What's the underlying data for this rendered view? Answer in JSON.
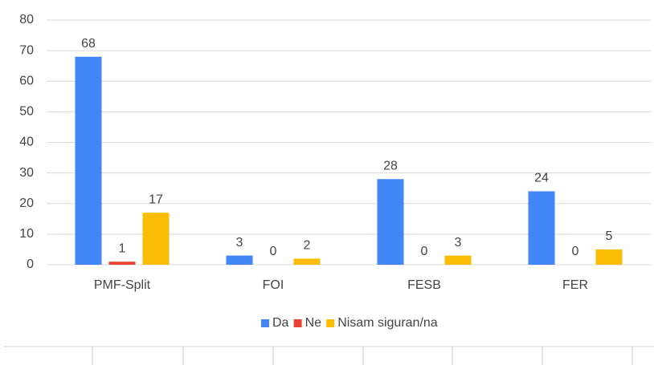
{
  "chart_data": {
    "type": "bar",
    "categories": [
      "PMF-Split",
      "FOI",
      "FESB",
      "FER"
    ],
    "series": [
      {
        "name": "Da",
        "color": "#4285f4",
        "values": [
          68,
          3,
          28,
          24
        ]
      },
      {
        "name": "Ne",
        "color": "#ea4335",
        "values": [
          1,
          0,
          0,
          0
        ]
      },
      {
        "name": "Nisam siguran/na",
        "color": "#fbbc04",
        "values": [
          17,
          2,
          3,
          5
        ]
      }
    ],
    "ylim": [
      0,
      80
    ],
    "yticks": [
      0,
      10,
      20,
      30,
      40,
      50,
      60,
      70,
      80
    ],
    "grid": true,
    "legend": "bottom"
  }
}
